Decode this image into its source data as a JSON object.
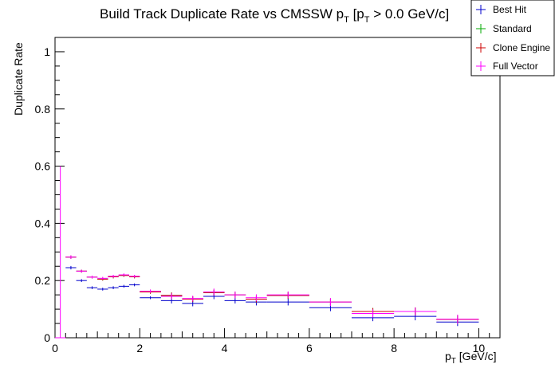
{
  "chart_data": {
    "type": "scatter",
    "title": {
      "main": "Build Track Duplicate Rate vs CMSSW p",
      "pt_sub_1": "T",
      "bracket_open": " [p",
      "pt_sub_2": "T",
      "bracket_close": " > 0.0 GeV/c]"
    },
    "xlabel": {
      "main": "p",
      "sub": "T",
      "unit": " [GeV/c]"
    },
    "ylabel": "Duplicate Rate",
    "xlim": [
      0,
      10.5
    ],
    "ylim": [
      0,
      1.05
    ],
    "x_ticks": [
      "0",
      "2",
      "4",
      "6",
      "8",
      "10"
    ],
    "y_ticks": [
      "0",
      "0.2",
      "0.4",
      "0.6",
      "0.8",
      "1"
    ],
    "grid": false,
    "legend_position": "top-right",
    "series": [
      {
        "name": "Best Hit",
        "color": "#0000cc",
        "points": [
          {
            "x_low": 0.0,
            "x_high": 0.25,
            "y": 0.0,
            "err": 0.0
          },
          {
            "x_low": 0.25,
            "x_high": 0.5,
            "y": 0.245,
            "err": 0.006
          },
          {
            "x_low": 0.5,
            "x_high": 0.75,
            "y": 0.2,
            "err": 0.005
          },
          {
            "x_low": 0.75,
            "x_high": 1.0,
            "y": 0.175,
            "err": 0.005
          },
          {
            "x_low": 1.0,
            "x_high": 1.25,
            "y": 0.17,
            "err": 0.005
          },
          {
            "x_low": 1.25,
            "x_high": 1.5,
            "y": 0.175,
            "err": 0.005
          },
          {
            "x_low": 1.5,
            "x_high": 1.75,
            "y": 0.18,
            "err": 0.005
          },
          {
            "x_low": 1.75,
            "x_high": 2.0,
            "y": 0.185,
            "err": 0.005
          },
          {
            "x_low": 2.0,
            "x_high": 2.5,
            "y": 0.14,
            "err": 0.005
          },
          {
            "x_low": 2.5,
            "x_high": 3.0,
            "y": 0.13,
            "err": 0.01
          },
          {
            "x_low": 3.0,
            "x_high": 3.5,
            "y": 0.12,
            "err": 0.01
          },
          {
            "x_low": 3.5,
            "x_high": 4.0,
            "y": 0.145,
            "err": 0.01
          },
          {
            "x_low": 4.0,
            "x_high": 4.5,
            "y": 0.13,
            "err": 0.01
          },
          {
            "x_low": 4.5,
            "x_high": 5.0,
            "y": 0.125,
            "err": 0.012
          },
          {
            "x_low": 5.0,
            "x_high": 6.0,
            "y": 0.125,
            "err": 0.012
          },
          {
            "x_low": 6.0,
            "x_high": 7.0,
            "y": 0.105,
            "err": 0.012
          },
          {
            "x_low": 7.0,
            "x_high": 8.0,
            "y": 0.07,
            "err": 0.012
          },
          {
            "x_low": 8.0,
            "x_high": 9.0,
            "y": 0.075,
            "err": 0.014
          },
          {
            "x_low": 9.0,
            "x_high": 10.0,
            "y": 0.055,
            "err": 0.014
          }
        ]
      },
      {
        "name": "Standard",
        "color": "#00aa00",
        "points": [
          {
            "x_low": 0.0,
            "x_high": 0.25,
            "y": 0.0,
            "err": 0.0
          },
          {
            "x_low": 0.25,
            "x_high": 0.5,
            "y": 0.282,
            "err": 0.006
          },
          {
            "x_low": 0.5,
            "x_high": 0.75,
            "y": 0.233,
            "err": 0.005
          },
          {
            "x_low": 0.75,
            "x_high": 1.0,
            "y": 0.212,
            "err": 0.005
          },
          {
            "x_low": 1.0,
            "x_high": 1.25,
            "y": 0.205,
            "err": 0.005
          },
          {
            "x_low": 1.25,
            "x_high": 1.5,
            "y": 0.213,
            "err": 0.005
          },
          {
            "x_low": 1.5,
            "x_high": 1.75,
            "y": 0.218,
            "err": 0.005
          },
          {
            "x_low": 1.75,
            "x_high": 2.0,
            "y": 0.213,
            "err": 0.005
          },
          {
            "x_low": 2.0,
            "x_high": 2.5,
            "y": 0.16,
            "err": 0.006
          },
          {
            "x_low": 2.5,
            "x_high": 3.0,
            "y": 0.148,
            "err": 0.01
          },
          {
            "x_low": 3.0,
            "x_high": 3.5,
            "y": 0.135,
            "err": 0.01
          },
          {
            "x_low": 3.5,
            "x_high": 4.0,
            "y": 0.158,
            "err": 0.01
          },
          {
            "x_low": 4.0,
            "x_high": 4.5,
            "y": 0.15,
            "err": 0.01
          },
          {
            "x_low": 4.5,
            "x_high": 5.0,
            "y": 0.135,
            "err": 0.012
          },
          {
            "x_low": 5.0,
            "x_high": 6.0,
            "y": 0.148,
            "err": 0.012
          },
          {
            "x_low": 6.0,
            "x_high": 7.0,
            "y": 0.125,
            "err": 0.012
          },
          {
            "x_low": 7.0,
            "x_high": 8.0,
            "y": 0.092,
            "err": 0.012
          },
          {
            "x_low": 8.0,
            "x_high": 9.0,
            "y": 0.092,
            "err": 0.014
          },
          {
            "x_low": 9.0,
            "x_high": 10.0,
            "y": 0.064,
            "err": 0.014
          }
        ]
      },
      {
        "name": "Clone Engine",
        "color": "#cc0000",
        "points": [
          {
            "x_low": 0.0,
            "x_high": 0.25,
            "y": 0.0,
            "err": 0.0
          },
          {
            "x_low": 0.25,
            "x_high": 0.5,
            "y": 0.282,
            "err": 0.006
          },
          {
            "x_low": 0.5,
            "x_high": 0.75,
            "y": 0.233,
            "err": 0.005
          },
          {
            "x_low": 0.75,
            "x_high": 1.0,
            "y": 0.212,
            "err": 0.005
          },
          {
            "x_low": 1.0,
            "x_high": 1.25,
            "y": 0.205,
            "err": 0.005
          },
          {
            "x_low": 1.25,
            "x_high": 1.5,
            "y": 0.213,
            "err": 0.005
          },
          {
            "x_low": 1.5,
            "x_high": 1.75,
            "y": 0.218,
            "err": 0.005
          },
          {
            "x_low": 1.75,
            "x_high": 2.0,
            "y": 0.213,
            "err": 0.005
          },
          {
            "x_low": 2.0,
            "x_high": 2.5,
            "y": 0.16,
            "err": 0.006
          },
          {
            "x_low": 2.5,
            "x_high": 3.0,
            "y": 0.148,
            "err": 0.01
          },
          {
            "x_low": 3.0,
            "x_high": 3.5,
            "y": 0.135,
            "err": 0.01
          },
          {
            "x_low": 3.5,
            "x_high": 4.0,
            "y": 0.158,
            "err": 0.01
          },
          {
            "x_low": 4.0,
            "x_high": 4.5,
            "y": 0.15,
            "err": 0.01
          },
          {
            "x_low": 4.5,
            "x_high": 5.0,
            "y": 0.135,
            "err": 0.012
          },
          {
            "x_low": 5.0,
            "x_high": 6.0,
            "y": 0.148,
            "err": 0.012
          },
          {
            "x_low": 6.0,
            "x_high": 7.0,
            "y": 0.125,
            "err": 0.012
          },
          {
            "x_low": 7.0,
            "x_high": 8.0,
            "y": 0.092,
            "err": 0.012
          },
          {
            "x_low": 8.0,
            "x_high": 9.0,
            "y": 0.092,
            "err": 0.014
          },
          {
            "x_low": 9.0,
            "x_high": 10.0,
            "y": 0.064,
            "err": 0.014
          }
        ]
      },
      {
        "name": "Full Vector",
        "color": "#ff00ff",
        "points": [
          {
            "x_low": 0.0,
            "x_high": 0.25,
            "y": 0.0,
            "err": 0.6
          },
          {
            "x_low": 0.25,
            "x_high": 0.5,
            "y": 0.282,
            "err": 0.006
          },
          {
            "x_low": 0.5,
            "x_high": 0.75,
            "y": 0.233,
            "err": 0.005
          },
          {
            "x_low": 0.75,
            "x_high": 1.0,
            "y": 0.212,
            "err": 0.005
          },
          {
            "x_low": 1.0,
            "x_high": 1.25,
            "y": 0.208,
            "err": 0.005
          },
          {
            "x_low": 1.25,
            "x_high": 1.5,
            "y": 0.215,
            "err": 0.005
          },
          {
            "x_low": 1.5,
            "x_high": 1.75,
            "y": 0.22,
            "err": 0.005
          },
          {
            "x_low": 1.75,
            "x_high": 2.0,
            "y": 0.215,
            "err": 0.005
          },
          {
            "x_low": 2.0,
            "x_high": 2.5,
            "y": 0.163,
            "err": 0.006
          },
          {
            "x_low": 2.5,
            "x_high": 3.0,
            "y": 0.145,
            "err": 0.01
          },
          {
            "x_low": 3.0,
            "x_high": 3.5,
            "y": 0.137,
            "err": 0.01
          },
          {
            "x_low": 3.5,
            "x_high": 4.0,
            "y": 0.16,
            "err": 0.012
          },
          {
            "x_low": 4.0,
            "x_high": 4.5,
            "y": 0.15,
            "err": 0.012
          },
          {
            "x_low": 4.5,
            "x_high": 5.0,
            "y": 0.14,
            "err": 0.012
          },
          {
            "x_low": 5.0,
            "x_high": 6.0,
            "y": 0.15,
            "err": 0.012
          },
          {
            "x_low": 6.0,
            "x_high": 7.0,
            "y": 0.125,
            "err": 0.014
          },
          {
            "x_low": 7.0,
            "x_high": 8.0,
            "y": 0.085,
            "err": 0.014
          },
          {
            "x_low": 8.0,
            "x_high": 9.0,
            "y": 0.092,
            "err": 0.014
          },
          {
            "x_low": 9.0,
            "x_high": 10.0,
            "y": 0.065,
            "err": 0.016
          }
        ]
      }
    ]
  }
}
